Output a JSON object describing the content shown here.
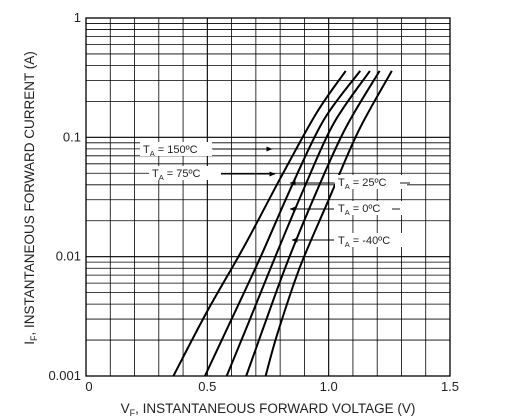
{
  "chart_data": {
    "type": "line",
    "xlabel": {
      "main": "V",
      "sub": "F",
      "rest": ", INSTANTANEOUS FORWARD VOLTAGE (V)"
    },
    "ylabel": {
      "main": "I",
      "sub": "F",
      "rest": ", INSTANTANEOUS FORWARD CURRENT (A)"
    },
    "xlim": [
      0,
      1.5
    ],
    "ylim": [
      0.001,
      1
    ],
    "y_scale": "log",
    "grid": true,
    "x_ticks": [
      {
        "value": 0,
        "label": "0"
      },
      {
        "value": 0.5,
        "label": "0.5"
      },
      {
        "value": 1.0,
        "label": "1.0"
      },
      {
        "value": 1.5,
        "label": "1.5"
      }
    ],
    "y_ticks": [
      {
        "value": 1,
        "label": "1"
      },
      {
        "value": 0.1,
        "label": "0.1"
      },
      {
        "value": 0.01,
        "label": "0.01"
      },
      {
        "value": 0.001,
        "label": "0.001"
      }
    ],
    "series": [
      {
        "name": "150ºC",
        "points": [
          [
            0.36,
            0.001
          ],
          [
            0.5,
            0.0035
          ],
          [
            0.65,
            0.012
          ],
          [
            0.8,
            0.045
          ],
          [
            0.95,
            0.16
          ],
          [
            1.07,
            0.36
          ]
        ]
      },
      {
        "name": "75ºC",
        "points": [
          [
            0.49,
            0.001
          ],
          [
            0.6,
            0.003
          ],
          [
            0.72,
            0.01
          ],
          [
            0.85,
            0.04
          ],
          [
            0.98,
            0.14
          ],
          [
            1.13,
            0.36
          ]
        ]
      },
      {
        "name": "25ºC",
        "points": [
          [
            0.58,
            0.001
          ],
          [
            0.67,
            0.0028
          ],
          [
            0.78,
            0.01
          ],
          [
            0.9,
            0.038
          ],
          [
            1.02,
            0.13
          ],
          [
            1.17,
            0.36
          ]
        ]
      },
      {
        "name": "0ºC",
        "points": [
          [
            0.66,
            0.001
          ],
          [
            0.73,
            0.0025
          ],
          [
            0.83,
            0.009
          ],
          [
            0.95,
            0.035
          ],
          [
            1.07,
            0.12
          ],
          [
            1.21,
            0.36
          ]
        ]
      },
      {
        "name": "-40ºC",
        "points": [
          [
            0.74,
            0.001
          ],
          [
            0.79,
            0.0023
          ],
          [
            0.88,
            0.008
          ],
          [
            1.0,
            0.03
          ],
          [
            1.12,
            0.11
          ],
          [
            1.26,
            0.36
          ]
        ]
      }
    ],
    "annotations": [
      {
        "series": 0,
        "prefix": "T",
        "sub": "A",
        "text": " = 150ºC"
      },
      {
        "series": 1,
        "prefix": "T",
        "sub": "A",
        "text": " = 75ºC"
      },
      {
        "series": 2,
        "prefix": "T",
        "sub": "A",
        "text": " = 25ºC"
      },
      {
        "series": 3,
        "prefix": "T",
        "sub": "A",
        "text": " = 0ºC"
      },
      {
        "series": 4,
        "prefix": "T",
        "sub": "A",
        "text": " = -40ºC"
      }
    ]
  }
}
